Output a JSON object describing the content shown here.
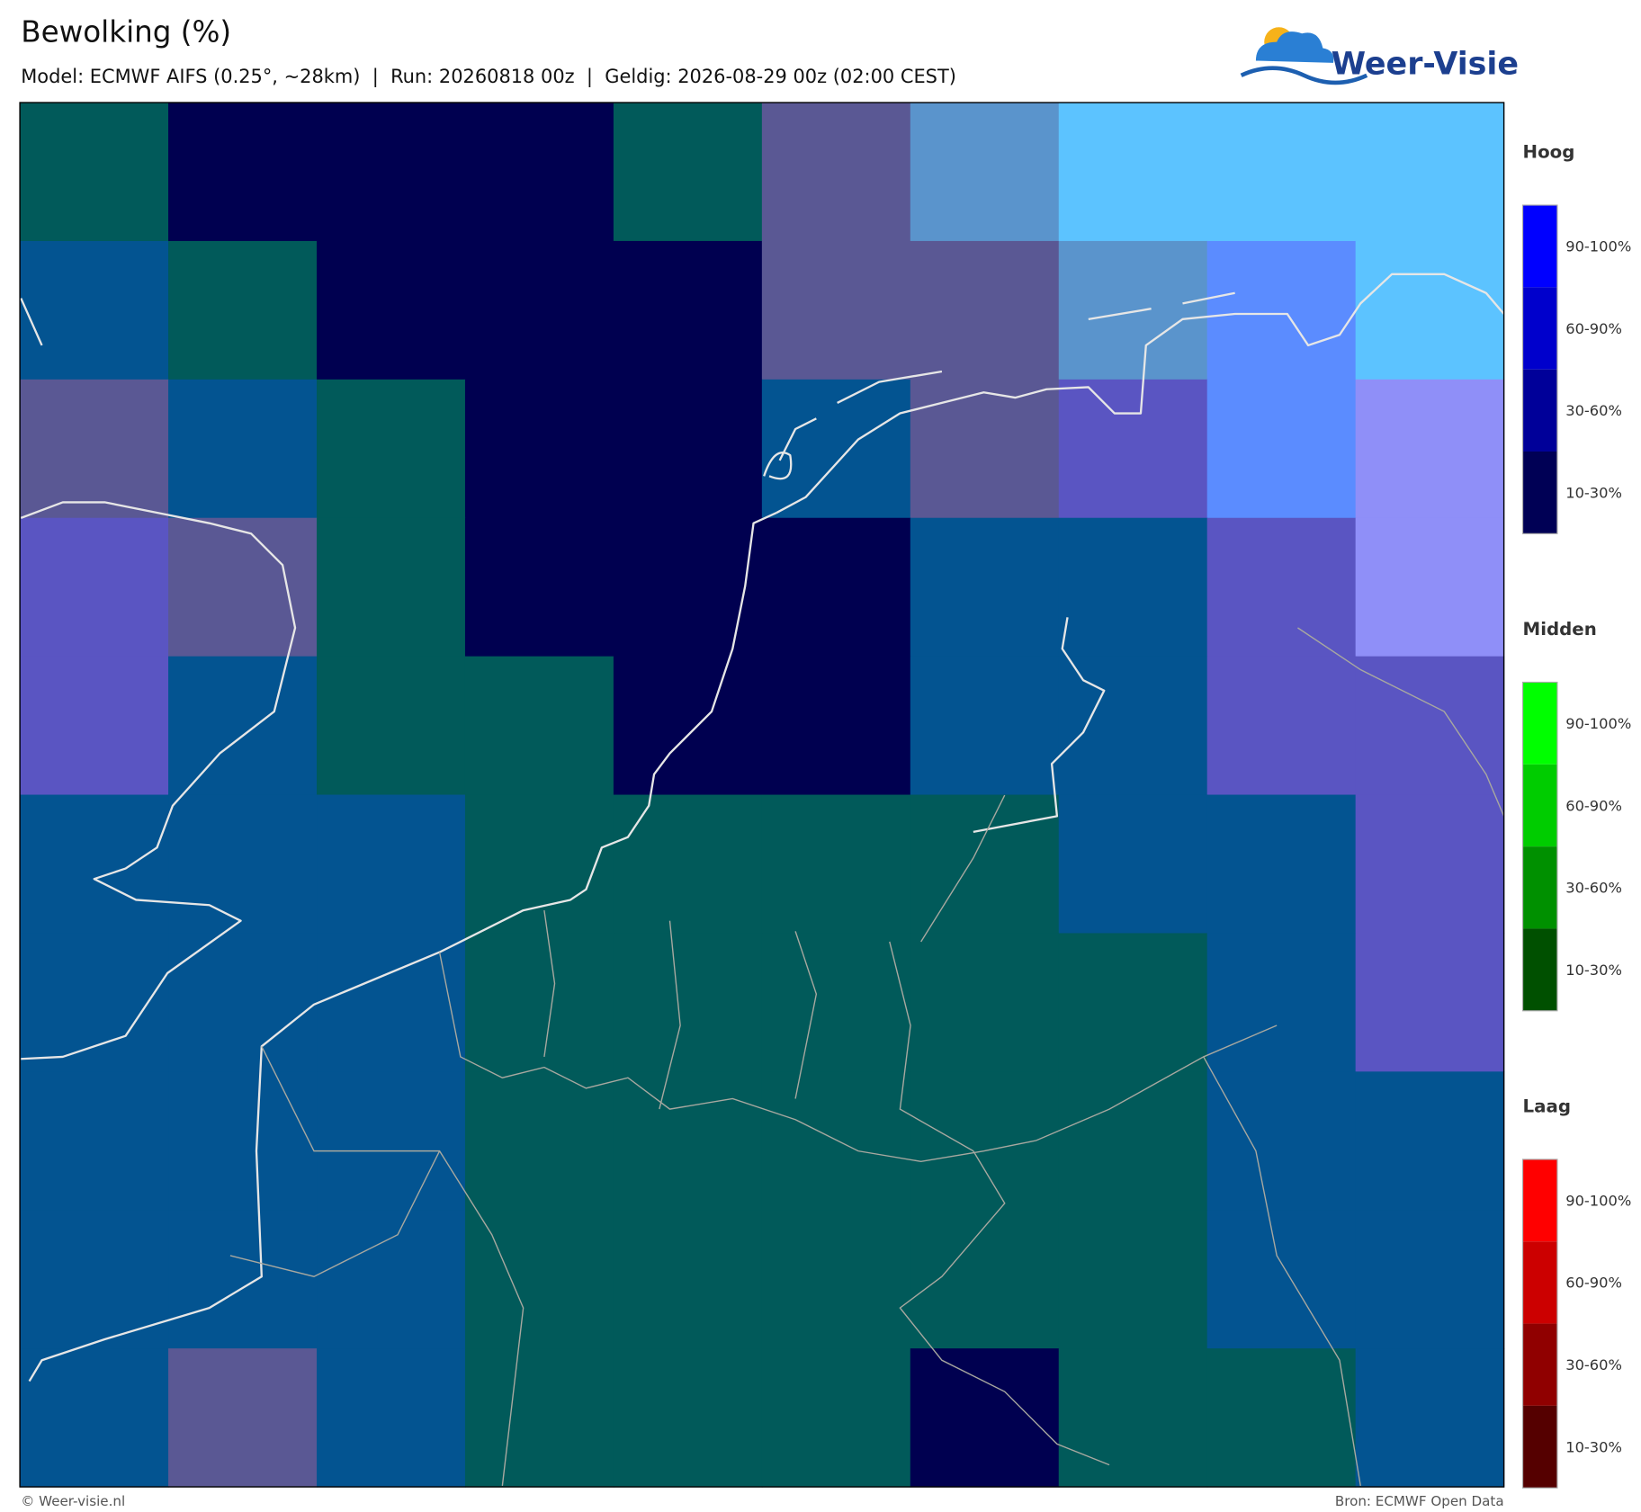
{
  "header": {
    "title": "Bewolking (%)",
    "subtitle": "Model: ECMWF AIFS (0.25°, ~28km)  |  Run: 20260818 00z  |  Geldig: 2026-08-29 00z (02:00 CEST)"
  },
  "logo": {
    "text": "Weer-Visie"
  },
  "legend": [
    {
      "title": "Hoog",
      "labels": [
        "90-100%",
        "60-90%",
        "30-60%",
        "10-30%"
      ]
    },
    {
      "title": "Midden",
      "labels": [
        "90-100%",
        "60-90%",
        "30-60%",
        "10-30%"
      ]
    },
    {
      "title": "Laag",
      "labels": [
        "90-100%",
        "60-90%",
        "30-60%",
        "10-30%"
      ]
    }
  ],
  "footer": {
    "left": "© Weer-visie.nl",
    "right": "Bron: ECMWF Open Data"
  }
}
